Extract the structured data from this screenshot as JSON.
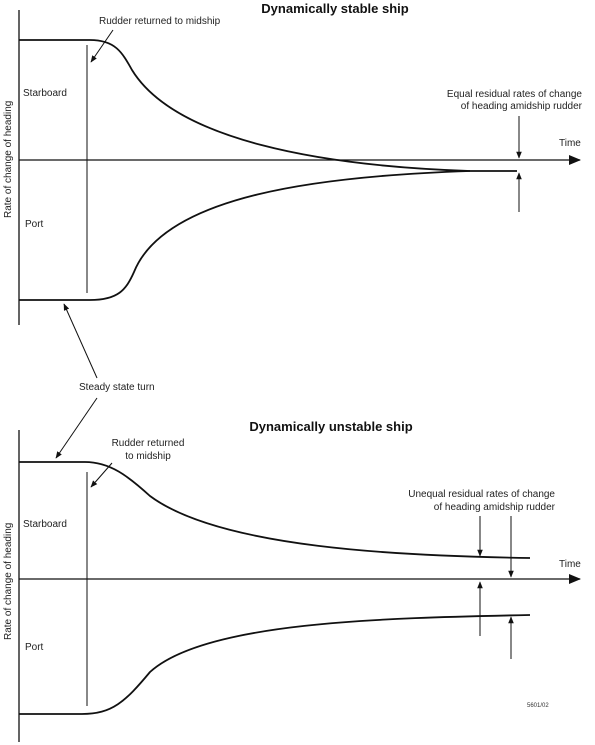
{
  "top_diagram": {
    "title": "Dynamically stable ship",
    "y_axis_label": "Rate of change of heading",
    "x_axis_label": "Time",
    "starboard_label": "Starboard",
    "port_label": "Port",
    "rudder_note": "Rudder returned to midship",
    "residual_note_line1": "Equal residual rates of change",
    "residual_note_line2": "of heading amidship rudder"
  },
  "shared_note": "Steady state turn",
  "bottom_diagram": {
    "title": "Dynamically unstable ship",
    "y_axis_label": "Rate of change of heading",
    "x_axis_label": "Time",
    "starboard_label": "Starboard",
    "port_label": "Port",
    "rudder_note_line1": "Rudder returned",
    "rudder_note_line2": "to midship",
    "residual_note_line1": "Unequal residual rates of change",
    "residual_note_line2": "of heading amidship rudder",
    "figure_code": "5601/02"
  },
  "colors": {
    "ink": "#111111",
    "background": "#ffffff"
  }
}
